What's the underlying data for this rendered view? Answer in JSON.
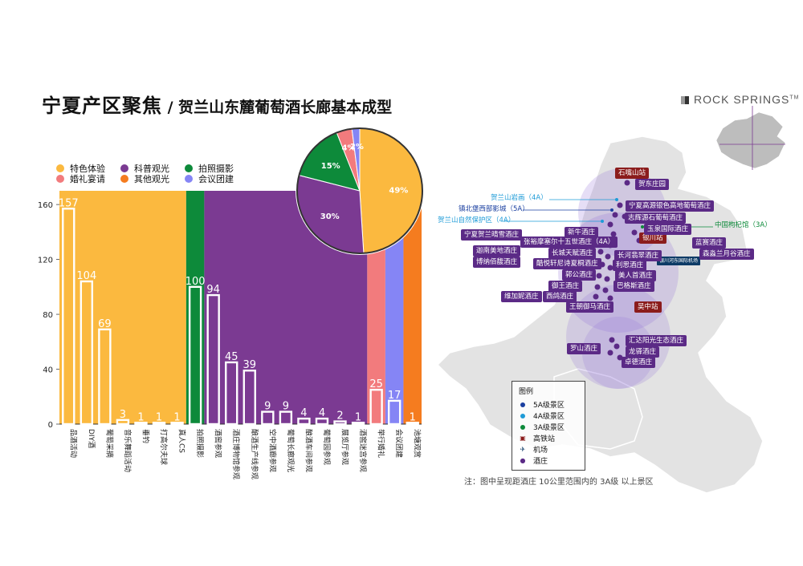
{
  "header": {
    "title_main": "宁夏产区聚焦",
    "title_sub": " / 贺兰山东麓葡萄酒长廊基本成型",
    "brand": "ROCK SPRINGS",
    "brand_tm": "TM"
  },
  "legend": [
    {
      "label": "特色体验",
      "color": "#fbb93f"
    },
    {
      "label": "科普观光",
      "color": "#7b3a92"
    },
    {
      "label": "拍照摄影",
      "color": "#0d8a3a"
    },
    {
      "label": "婚礼宴请",
      "color": "#f27b7d"
    },
    {
      "label": "其他观光",
      "color": "#f57c1f"
    },
    {
      "label": "会议团建",
      "color": "#8585f5"
    }
  ],
  "chart_data": [
    {
      "type": "bar",
      "ylim": [
        0,
        170
      ],
      "yticks": [
        0,
        40,
        80,
        120,
        160
      ],
      "categories": [
        "品酒活动",
        "DIY酒",
        "葡萄采摘",
        "音乐舞蹈活动",
        "垂钓",
        "打高尔夫球",
        "真人CS",
        "拍照摄影",
        "酒窖参观",
        "酒庄博物馆参观",
        "酿酒生产线参观",
        "空中酒廊参观",
        "葡萄长廊观光",
        "酿酒车间参观",
        "葡萄园参观",
        "展览厅参观",
        "酒窖迷宫参观",
        "举行婚礼",
        "会议团建",
        "池塘观赏"
      ],
      "values": [
        157,
        104,
        69,
        3,
        1,
        1,
        1,
        100,
        94,
        45,
        39,
        9,
        9,
        4,
        4,
        2,
        1,
        25,
        17,
        1
      ],
      "groups": [
        {
          "name": "特色体验",
          "color": "#fbb93f",
          "from": 0,
          "to": 6
        },
        {
          "name": "拍照摄影",
          "color": "#0d8a3a",
          "from": 7,
          "to": 7
        },
        {
          "name": "科普观光",
          "color": "#7b3a92",
          "from": 8,
          "to": 16
        },
        {
          "name": "婚礼宴请",
          "color": "#f27b7d",
          "from": 17,
          "to": 17
        },
        {
          "name": "会议团建",
          "color": "#8585f5",
          "from": 18,
          "to": 18
        },
        {
          "name": "其他观光",
          "color": "#f57c1f",
          "from": 19,
          "to": 19
        }
      ]
    },
    {
      "type": "pie",
      "slices": [
        {
          "name": "特色体验",
          "value": 49,
          "label": "49%",
          "color": "#fbb93f"
        },
        {
          "name": "科普观光",
          "value": 30,
          "label": "30%",
          "color": "#7b3a92"
        },
        {
          "name": "拍照摄影",
          "value": 15,
          "label": "15%",
          "color": "#0d8a3a"
        },
        {
          "name": "婚礼宴请",
          "value": 4,
          "label": "4%",
          "color": "#f27b7d"
        },
        {
          "name": "会议团建",
          "value": 2,
          "label": "2%",
          "color": "#8585f5"
        }
      ]
    }
  ],
  "map": {
    "stations": [
      "石嘴山站",
      "银川站",
      "吴中站"
    ],
    "airport": "银川河东国际机场",
    "scenic": [
      {
        "label": "贺兰山岩画（4A）",
        "color": "#1e9bd7"
      },
      {
        "label": "镇北堡西部影城（5A）",
        "color": "#1a3fa0"
      },
      {
        "label": "贺兰山自然保护区（4A）",
        "color": "#1e9bd7"
      },
      {
        "label": "中国枸杞馆（3A）",
        "color": "#0d8a3a"
      }
    ],
    "hotels": [
      "贺东庄园",
      "宁夏高源银色高地葡萄酒庄",
      "志辉源石葡萄酒庄",
      "玉泉国际酒庄",
      "宁夏贺兰晴雪酒庄",
      "张裕摩塞尔十五世酒庄（4A）",
      "迦南美地酒庄",
      "新牛酒庄",
      "长城天赋酒庄",
      "博纳佰馥酒庄",
      "酷悦轩尼诗夏桐酒庄",
      "长河翡翠酒庄",
      "利思酒庄",
      "郭公酒庄",
      "美人首酒庄",
      "御王酒庄",
      "巴格斯酒庄",
      "维加妮酒庄",
      "西鸽酒庄",
      "王朝御马酒庄",
      "汇达阳光生态酒庄",
      "罗山酒庄",
      "龙驿酒庄",
      "卓德酒庄",
      "蓝赛酒庄",
      "森淼兰月谷酒庄"
    ],
    "legend_title": "图例",
    "legend_items": [
      "5A级景区",
      "4A级景区",
      "3A级景区",
      "高铁站",
      "机场",
      "酒庄"
    ],
    "note": "注：图中呈现距酒庄 10公里范围内的 3A级 以上景区"
  }
}
